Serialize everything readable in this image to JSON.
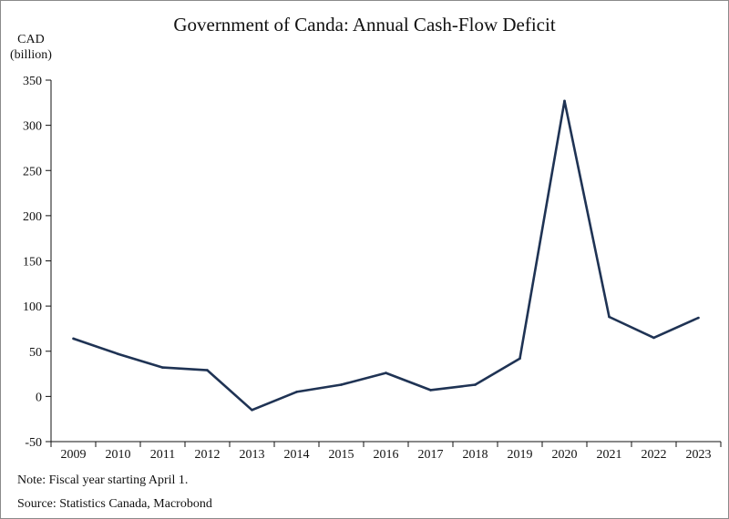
{
  "chart_data": {
    "type": "line",
    "title": "Government of Canda: Annual Cash-Flow Deficit",
    "ylabel_line1": "CAD",
    "ylabel_line2": "(billion)",
    "xlabel": "",
    "categories": [
      "2009",
      "2010",
      "2011",
      "2012",
      "2013",
      "2014",
      "2015",
      "2016",
      "2017",
      "2018",
      "2019",
      "2020",
      "2021",
      "2022",
      "2023"
    ],
    "series": [
      {
        "values": [
          64,
          47,
          32,
          29,
          -15,
          5,
          13,
          26,
          7,
          13,
          42,
          327,
          88,
          65,
          87
        ],
        "color": "#1f3354"
      }
    ],
    "ylim": [
      -50,
      350
    ],
    "yticks": [
      -50,
      0,
      50,
      100,
      150,
      200,
      250,
      300,
      350
    ],
    "grid": false,
    "legend": "none"
  },
  "notes": {
    "note": "Note: Fiscal year starting April 1.",
    "source": "Source: Statistics Canada, Macrobond"
  }
}
